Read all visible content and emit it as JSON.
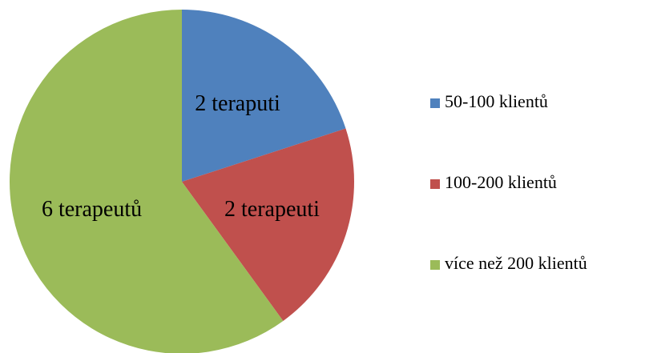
{
  "chart_data": {
    "type": "pie",
    "categories": [
      "50-100 klientů",
      "100-200 klientů",
      "více než 200 klientů"
    ],
    "values": [
      2,
      2,
      6
    ],
    "value_labels": [
      "2 teraputi",
      "2 terapeuti",
      "6 terapeutů"
    ],
    "colors": [
      "#4f81bd",
      "#c0504d",
      "#9bbb59"
    ],
    "legend": "right"
  }
}
